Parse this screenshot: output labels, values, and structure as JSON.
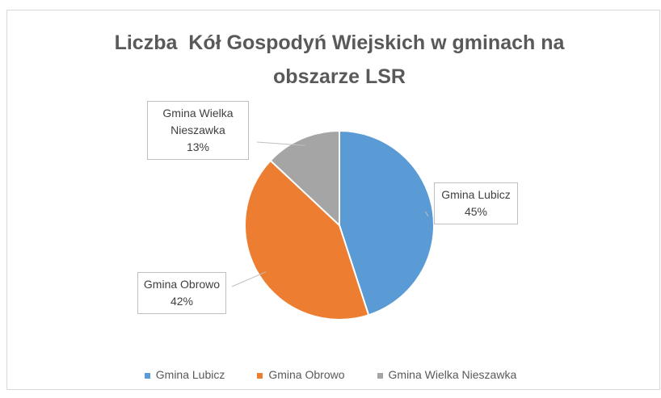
{
  "chart_data": {
    "type": "pie",
    "title": "Liczba  Kół Gospodyń Wiejskich w gminach na obszarze LSR",
    "categories": [
      "Gmina Lubicz",
      "Gmina Obrowo",
      "Gmina Wielka Nieszawka"
    ],
    "values": [
      45,
      42,
      13
    ],
    "value_labels": [
      "45%",
      "42%",
      "13%"
    ],
    "colors": [
      "#5b9bd5",
      "#ed7d31",
      "#a5a5a5"
    ],
    "legend": "bottom"
  }
}
